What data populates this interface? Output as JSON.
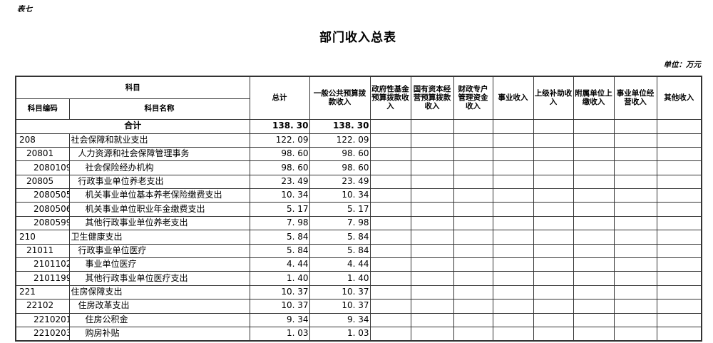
{
  "page": {
    "sheet_label": "表七",
    "title": "部门收入总表",
    "unit_note": "单位：万元"
  },
  "table": {
    "header": {
      "subject": "科目",
      "subject_code": "科目编码",
      "subject_name": "科目名称",
      "value_columns": [
        "总计",
        "一般公共预算拨款收入",
        "政府性基金预算拨款收入",
        "国有资本经营预算拨款收入",
        "财政专户管理资金收入",
        "事业收入",
        "上级补助收入",
        "附属单位上缴收入",
        "事业单位经营收入",
        "其他收入"
      ]
    },
    "total_row": {
      "label": "合计",
      "values": [
        "138. 30",
        "138. 30",
        "",
        "",
        "",
        "",
        "",
        "",
        "",
        ""
      ]
    },
    "rows": [
      {
        "code": "208",
        "name": "社会保障和就业支出",
        "indent": 0,
        "values": [
          "122. 09",
          "122. 09",
          "",
          "",
          "",
          "",
          "",
          "",
          "",
          ""
        ]
      },
      {
        "code": "20801",
        "name": "人力资源和社会保障管理事务",
        "indent": 1,
        "values": [
          "98. 60",
          "98. 60",
          "",
          "",
          "",
          "",
          "",
          "",
          "",
          ""
        ]
      },
      {
        "code": "2080109",
        "name": "社会保险经办机构",
        "indent": 2,
        "values": [
          "98. 60",
          "98. 60",
          "",
          "",
          "",
          "",
          "",
          "",
          "",
          ""
        ]
      },
      {
        "code": "20805",
        "name": "行政事业单位养老支出",
        "indent": 1,
        "values": [
          "23. 49",
          "23. 49",
          "",
          "",
          "",
          "",
          "",
          "",
          "",
          ""
        ]
      },
      {
        "code": "2080505",
        "name": "机关事业单位基本养老保险缴费支出",
        "indent": 2,
        "values": [
          "10. 34",
          "10. 34",
          "",
          "",
          "",
          "",
          "",
          "",
          "",
          ""
        ]
      },
      {
        "code": "2080506",
        "name": "机关事业单位职业年金缴费支出",
        "indent": 2,
        "values": [
          "5. 17",
          "5. 17",
          "",
          "",
          "",
          "",
          "",
          "",
          "",
          ""
        ]
      },
      {
        "code": "2080599",
        "name": "其他行政事业单位养老支出",
        "indent": 2,
        "values": [
          "7. 98",
          "7. 98",
          "",
          "",
          "",
          "",
          "",
          "",
          "",
          ""
        ]
      },
      {
        "code": "210",
        "name": "卫生健康支出",
        "indent": 0,
        "values": [
          "5. 84",
          "5. 84",
          "",
          "",
          "",
          "",
          "",
          "",
          "",
          ""
        ]
      },
      {
        "code": "21011",
        "name": "行政事业单位医疗",
        "indent": 1,
        "values": [
          "5. 84",
          "5. 84",
          "",
          "",
          "",
          "",
          "",
          "",
          "",
          ""
        ]
      },
      {
        "code": "2101102",
        "name": "事业单位医疗",
        "indent": 2,
        "values": [
          "4. 44",
          "4. 44",
          "",
          "",
          "",
          "",
          "",
          "",
          "",
          ""
        ]
      },
      {
        "code": "2101199",
        "name": "其他行政事业单位医疗支出",
        "indent": 2,
        "values": [
          "1. 40",
          "1. 40",
          "",
          "",
          "",
          "",
          "",
          "",
          "",
          ""
        ]
      },
      {
        "code": "221",
        "name": "住房保障支出",
        "indent": 0,
        "values": [
          "10. 37",
          "10. 37",
          "",
          "",
          "",
          "",
          "",
          "",
          "",
          ""
        ]
      },
      {
        "code": "22102",
        "name": "住房改革支出",
        "indent": 1,
        "values": [
          "10. 37",
          "10. 37",
          "",
          "",
          "",
          "",
          "",
          "",
          "",
          ""
        ]
      },
      {
        "code": "2210201",
        "name": "住房公积金",
        "indent": 2,
        "values": [
          "9. 34",
          "9. 34",
          "",
          "",
          "",
          "",
          "",
          "",
          "",
          ""
        ]
      },
      {
        "code": "2210203",
        "name": "购房补贴",
        "indent": 2,
        "values": [
          "1. 03",
          "1. 03",
          "",
          "",
          "",
          "",
          "",
          "",
          "",
          ""
        ]
      }
    ]
  }
}
